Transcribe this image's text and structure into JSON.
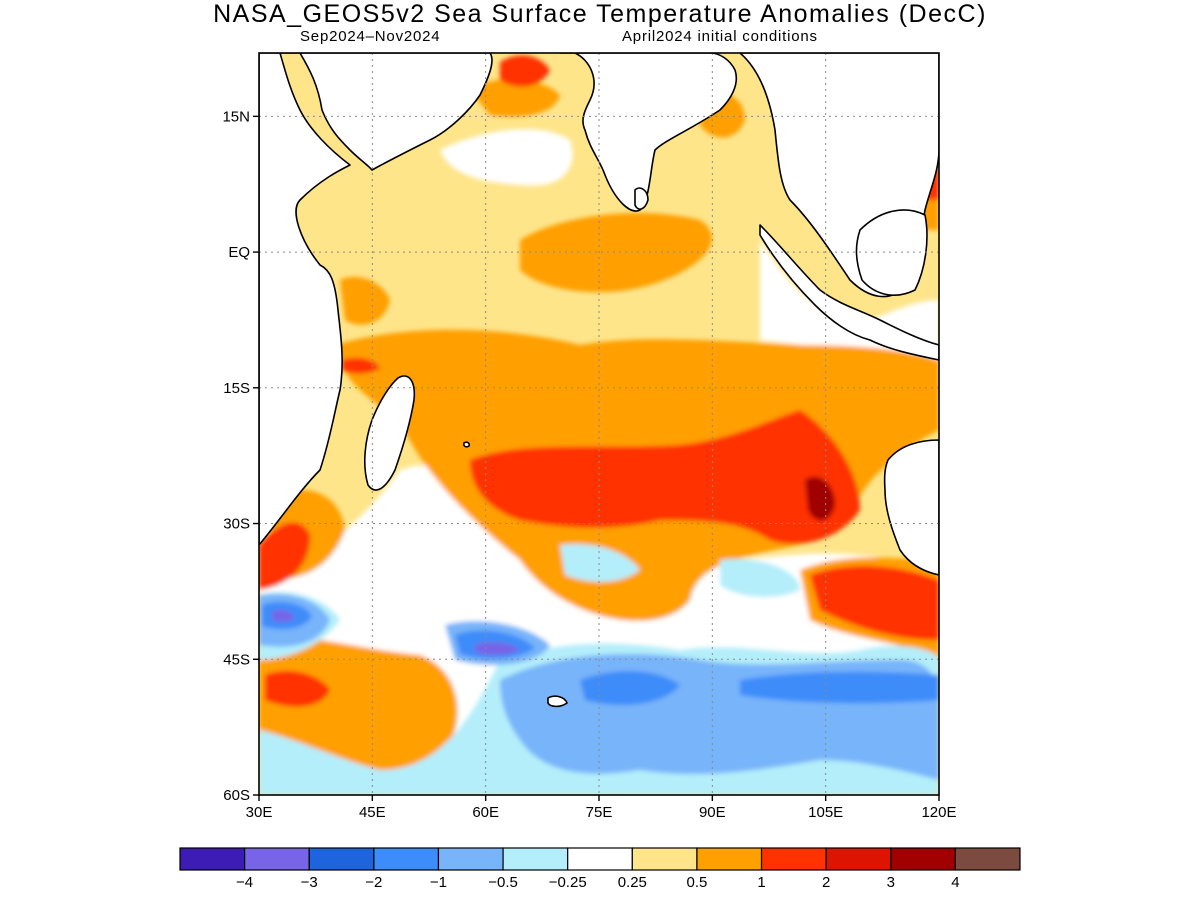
{
  "title": "NASA_GEOS5v2 Sea Surface Temperature Anomalies (DecC)",
  "subtitle_left": "Sep2024–Nov2024",
  "subtitle_right": "April2024 initial conditions",
  "map": {
    "lon_range": [
      30,
      120
    ],
    "lat_range": [
      -60,
      22
    ],
    "grid": true,
    "lat_ticks": [
      {
        "value": 15,
        "label": "15N"
      },
      {
        "value": 0,
        "label": "EQ"
      },
      {
        "value": -15,
        "label": "15S"
      },
      {
        "value": -30,
        "label": "30S"
      },
      {
        "value": -45,
        "label": "45S"
      },
      {
        "value": -60,
        "label": "60S"
      }
    ],
    "lon_ticks": [
      {
        "value": 30,
        "label": "30E"
      },
      {
        "value": 45,
        "label": "45E"
      },
      {
        "value": 60,
        "label": "60E"
      },
      {
        "value": 75,
        "label": "75E"
      },
      {
        "value": 90,
        "label": "90E"
      },
      {
        "value": 105,
        "label": "105E"
      },
      {
        "value": 120,
        "label": "120E"
      }
    ],
    "anomaly_colors": {
      "weak_positive": "#fee58a",
      "moderate_positive": "#ff9f00",
      "strong_positive": "#ff3200",
      "very_strong_positive": "#a00000",
      "weak_negative": "#b4eefa",
      "moderate_negative": "#78b4fa",
      "strong_negative": "#3c8cfa",
      "very_strong_negative": "#7864e6"
    }
  },
  "colorbar": {
    "colors": [
      "#3c1cb4",
      "#7864e6",
      "#1e64dc",
      "#3c8cfa",
      "#78b4fa",
      "#b4eefa",
      "#ffffff",
      "#fee58a",
      "#ff9f00",
      "#ff3200",
      "#dc1400",
      "#a00000",
      "#7a4b3e"
    ],
    "labels": [
      "−4",
      "−3",
      "−2",
      "−1",
      "−0.5",
      "−0.25",
      "0.25",
      "0.5",
      "1",
      "2",
      "3",
      "4"
    ]
  }
}
